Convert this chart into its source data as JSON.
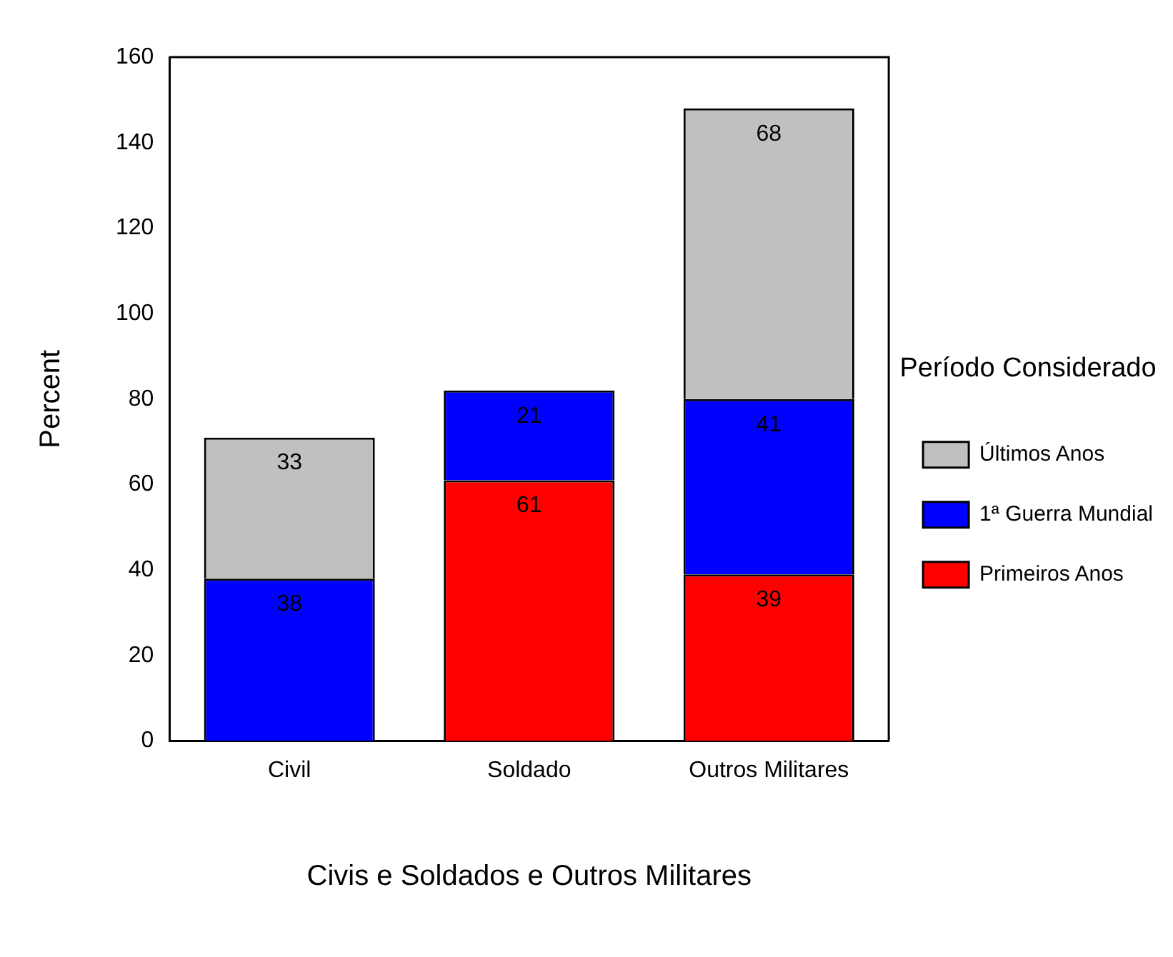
{
  "chart_data": {
    "type": "bar",
    "stacked": true,
    "categories": [
      "Civil",
      "Soldado",
      "Outros Militares"
    ],
    "series": [
      {
        "name": "Primeiros Anos",
        "color": "#ff0000",
        "values": [
          null,
          61,
          39
        ]
      },
      {
        "name": "1ª Guerra Mundial",
        "color": "#0000ff",
        "values": [
          38,
          21,
          41
        ]
      },
      {
        "name": "Últimos Anos",
        "color": "#c0c0c0",
        "values": [
          33,
          null,
          68
        ]
      }
    ],
    "xlabel": "Civis e Soldados e Outros Militares",
    "ylabel": "Percent",
    "legend_title": "Período Considerado",
    "legend": "right",
    "ylim": [
      0,
      160
    ],
    "yticks": [
      0,
      20,
      40,
      60,
      80,
      100,
      120,
      140,
      160
    ],
    "grid": false,
    "data_labels": true
  }
}
